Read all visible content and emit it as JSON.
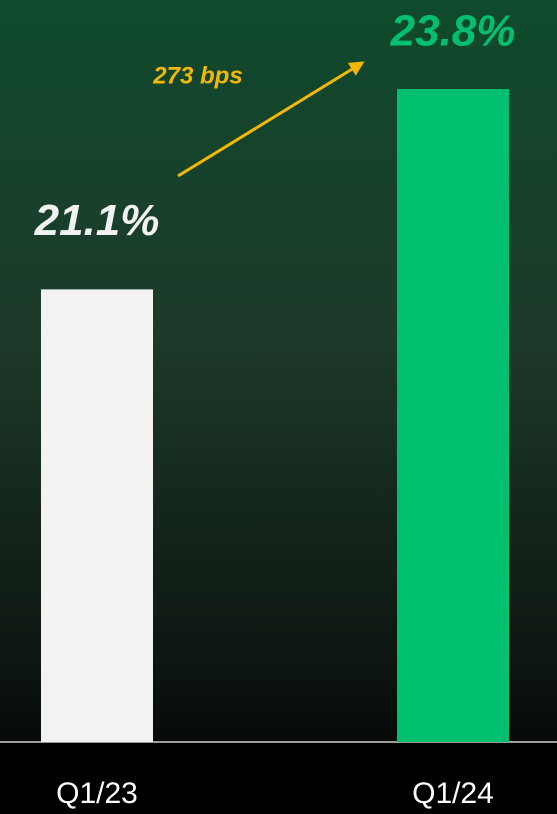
{
  "chart_data": {
    "type": "bar",
    "categories": [
      "Q1/23",
      "Q1/24"
    ],
    "values": [
      21.1,
      23.8
    ],
    "value_labels": [
      "21.1%",
      "23.8%"
    ],
    "colors": [
      "#f2f2f2",
      "#00c070"
    ],
    "ylim": [
      15,
      25
    ],
    "annotation": "273 bps"
  }
}
